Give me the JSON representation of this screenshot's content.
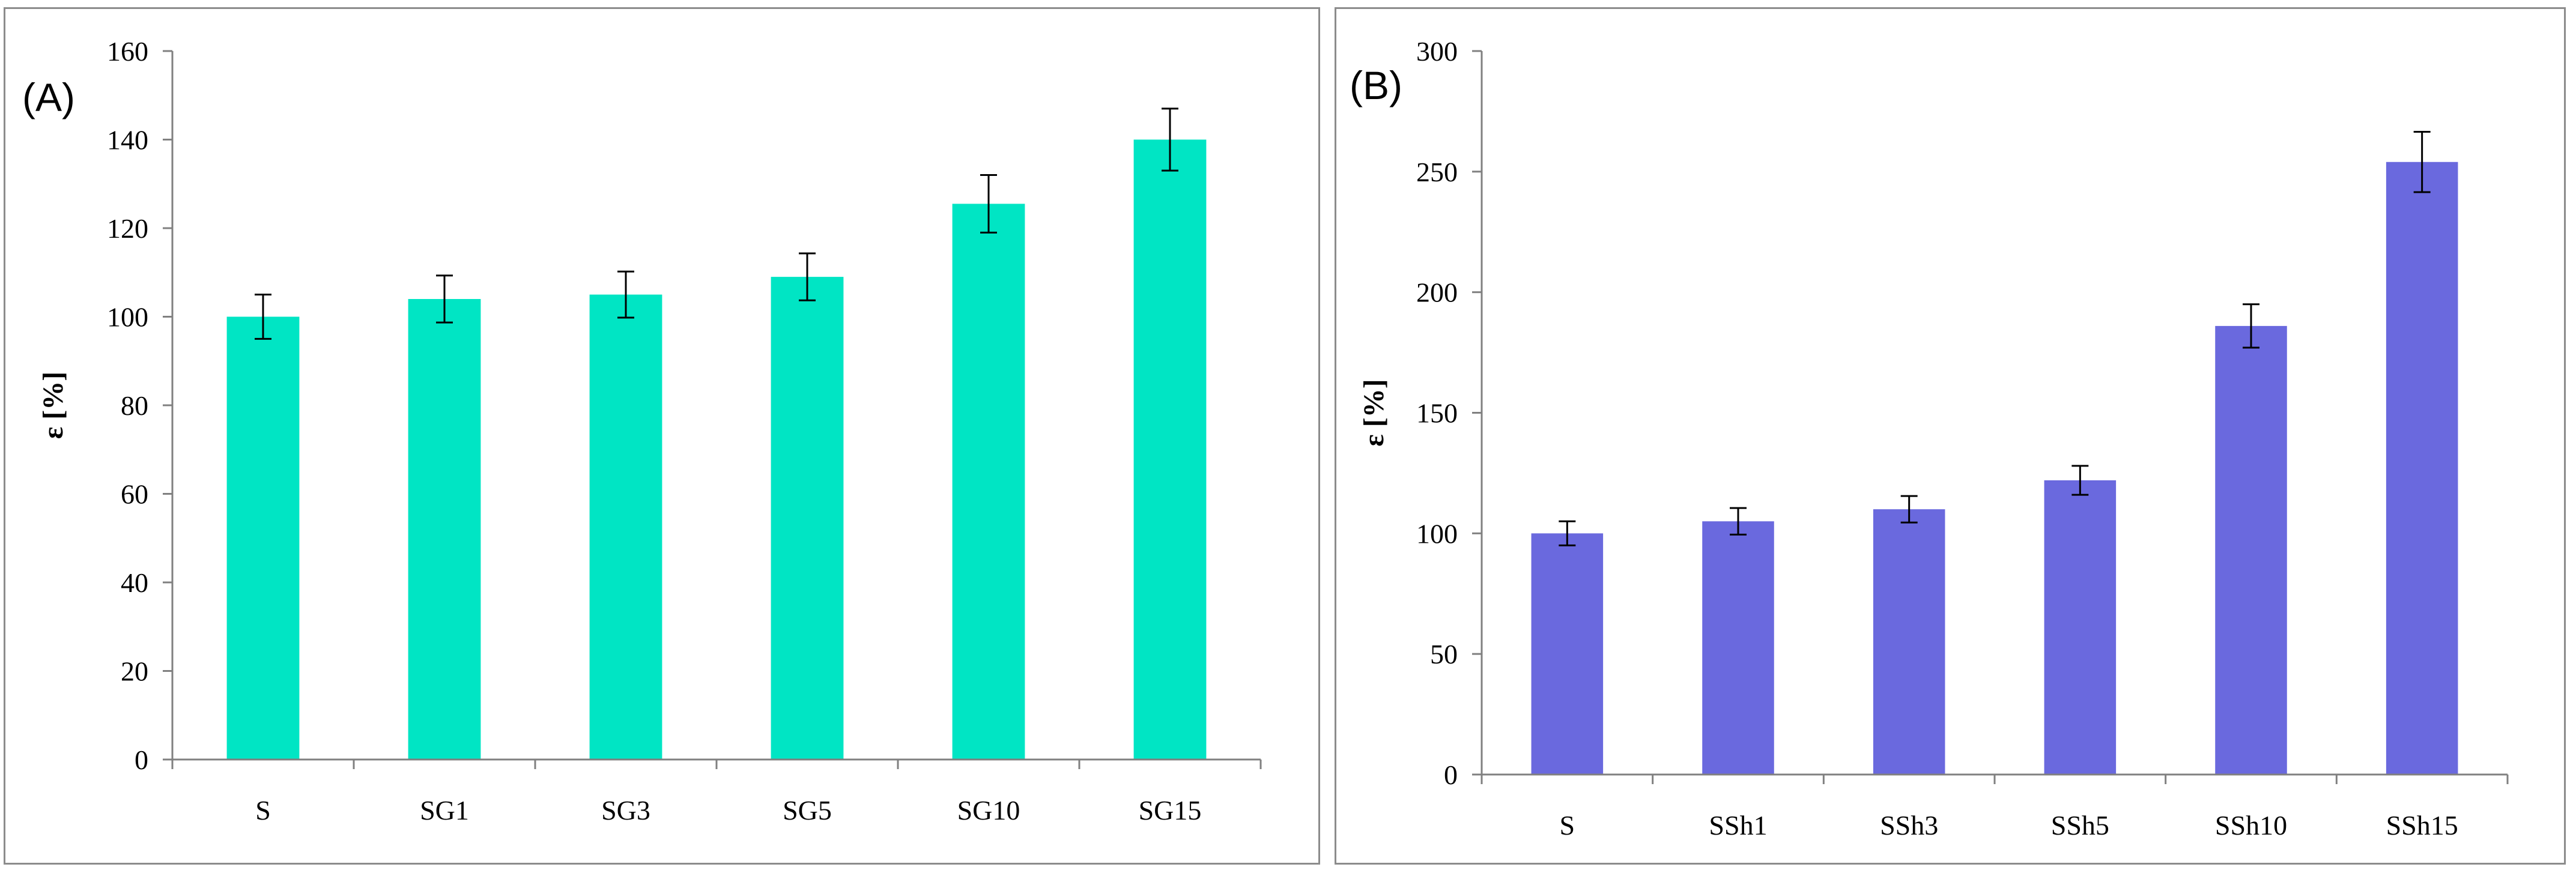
{
  "chart_data": [
    {
      "type": "bar",
      "panel_label": "(A)",
      "ylabel": "ε [%]",
      "xlabel": "",
      "categories": [
        "S",
        "SG1",
        "SG3",
        "SG5",
        "SG10",
        "SG15"
      ],
      "values": [
        100,
        104,
        105,
        109,
        125.5,
        140
      ],
      "errors": [
        5,
        5.3,
        5.2,
        5.3,
        6.5,
        7
      ],
      "ylim": [
        0,
        160
      ],
      "yticks": [
        0,
        20,
        40,
        60,
        80,
        100,
        120,
        140,
        160
      ],
      "color": "#00e5c4",
      "grid": false,
      "legend": "none"
    },
    {
      "type": "bar",
      "panel_label": "(B)",
      "ylabel": "ε [%]",
      "xlabel": "",
      "categories": [
        "S",
        "SSh1",
        "SSh3",
        "SSh5",
        "SSh10",
        "SSh15"
      ],
      "values": [
        100,
        105,
        110,
        122,
        186,
        254
      ],
      "errors": [
        5,
        5.5,
        5.5,
        6,
        9,
        12.5
      ],
      "ylim": [
        0,
        300
      ],
      "yticks": [
        0,
        50,
        100,
        150,
        200,
        250,
        300
      ],
      "color": "#6a69de",
      "grid": false,
      "legend": "none"
    }
  ]
}
